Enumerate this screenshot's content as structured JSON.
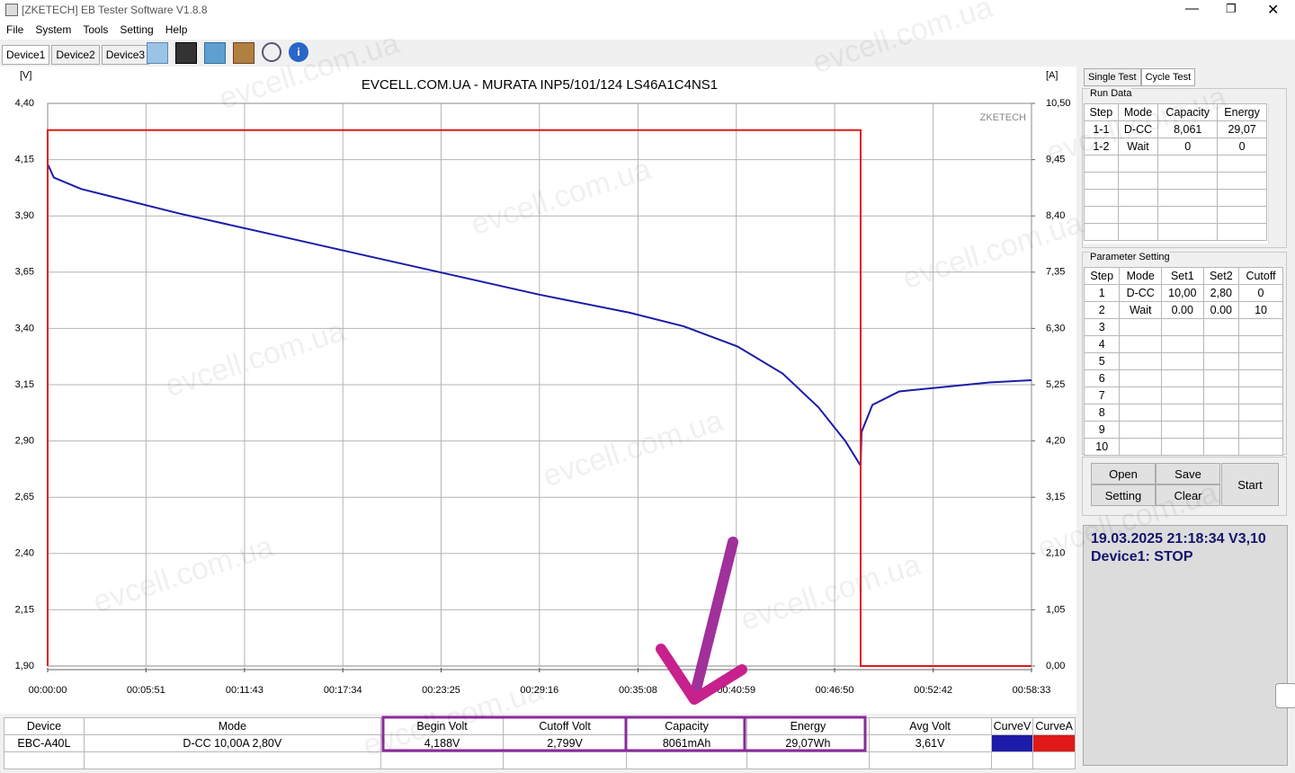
{
  "window": {
    "title": "[ZKETECH] EB Tester Software V1.8.8"
  },
  "menu": [
    "File",
    "System",
    "Tools",
    "Setting",
    "Help"
  ],
  "device_tabs": [
    "Device1",
    "Device2",
    "Device3"
  ],
  "watermark": "evcell.com.ua",
  "chart_data": {
    "type": "line",
    "title": "EVCELL.COM.UA - MURATA INP5/101/124 LS46A1C4NS1",
    "y_unit": "[V]",
    "y2_unit": "[A]",
    "brand": "ZKETECH",
    "grid": true,
    "xlim": [
      0,
      3513
    ],
    "xticks": [
      {
        "value": 0,
        "label": "00:00:00"
      },
      {
        "value": 351,
        "label": "00:05:51"
      },
      {
        "value": 703,
        "label": "00:11:43"
      },
      {
        "value": 1054,
        "label": "00:17:34"
      },
      {
        "value": 1405,
        "label": "00:23:25"
      },
      {
        "value": 1756,
        "label": "00:29:16"
      },
      {
        "value": 2108,
        "label": "00:35:08"
      },
      {
        "value": 2459,
        "label": "00:40:59"
      },
      {
        "value": 2810,
        "label": "00:46:50"
      },
      {
        "value": 3162,
        "label": "00:52:42"
      },
      {
        "value": 3513,
        "label": "00:58:33"
      }
    ],
    "ylim": [
      1.9,
      4.4
    ],
    "yticks": [
      {
        "value": 4.4,
        "label": "4,40"
      },
      {
        "value": 4.15,
        "label": "4,15"
      },
      {
        "value": 3.9,
        "label": "3,90"
      },
      {
        "value": 3.65,
        "label": "3,65"
      },
      {
        "value": 3.4,
        "label": "3,40"
      },
      {
        "value": 3.15,
        "label": "3,15"
      },
      {
        "value": 2.9,
        "label": "2,90"
      },
      {
        "value": 2.65,
        "label": "2,65"
      },
      {
        "value": 2.4,
        "label": "2,40"
      },
      {
        "value": 2.15,
        "label": "2,15"
      },
      {
        "value": 1.9,
        "label": "1,90"
      }
    ],
    "y2lim": [
      0,
      10.5
    ],
    "y2ticks": [
      {
        "value": 10.5,
        "label": "10,50"
      },
      {
        "value": 9.45,
        "label": "9,45"
      },
      {
        "value": 8.4,
        "label": "8,40"
      },
      {
        "value": 7.35,
        "label": "7,35"
      },
      {
        "value": 6.3,
        "label": "6,30"
      },
      {
        "value": 5.25,
        "label": "5,25"
      },
      {
        "value": 4.2,
        "label": "4,20"
      },
      {
        "value": 3.15,
        "label": "3,15"
      },
      {
        "value": 2.1,
        "label": "2,10"
      },
      {
        "value": 1.05,
        "label": "1,05"
      },
      {
        "value": 0,
        "label": "0,00"
      }
    ],
    "series": [
      {
        "name": "CurveV",
        "color": "#1c1ca8",
        "x": [
          0,
          22,
          119,
          472,
          793,
          1114,
          1435,
          1756,
          2078,
          2270,
          2463,
          2624,
          2752,
          2848,
          2903,
          2906,
          2945,
          3041,
          3201,
          3362,
          3513
        ],
        "values": [
          4.13,
          4.07,
          4.02,
          3.91,
          3.82,
          3.73,
          3.64,
          3.55,
          3.47,
          3.41,
          3.32,
          3.2,
          3.05,
          2.9,
          2.79,
          2.94,
          3.06,
          3.12,
          3.14,
          3.16,
          3.17
        ]
      },
      {
        "name": "CurveA",
        "color": "#e01818",
        "axis": "y2",
        "x": [
          0,
          0,
          2903,
          2903,
          3513
        ],
        "values": [
          0,
          10,
          10,
          0,
          0
        ]
      }
    ]
  },
  "right_panel": {
    "tabs": [
      "Single Test",
      "Cycle Test"
    ],
    "run_data": {
      "title": "Run Data",
      "headers": [
        "Step",
        "Mode",
        "Capacity",
        "Energy"
      ],
      "rows": [
        [
          "1-1",
          "D-CC",
          "8,061",
          "29,07"
        ],
        [
          "1-2",
          "Wait",
          "0",
          "0"
        ]
      ]
    },
    "parameter_setting": {
      "title": "Parameter Setting",
      "headers": [
        "Step",
        "Mode",
        "Set1",
        "Set2",
        "Cutoff"
      ],
      "rows": [
        [
          "1",
          "D-CC",
          "10,00",
          "2,80",
          "0"
        ],
        [
          "2",
          "Wait",
          "0.00",
          "0.00",
          "10"
        ],
        [
          "3"
        ],
        [
          "4"
        ],
        [
          "5"
        ],
        [
          "6"
        ],
        [
          "7"
        ],
        [
          "8"
        ],
        [
          "9"
        ],
        [
          "10"
        ]
      ]
    },
    "buttons": {
      "open": "Open",
      "save": "Save",
      "setting": "Setting",
      "clear": "Clear",
      "start": "Start"
    },
    "status": [
      "19.03.2025 21:18:34  V3,10",
      "Device1: STOP"
    ]
  },
  "bottom_table": {
    "headers": [
      "Device",
      "Mode",
      "Begin Volt",
      "Cutoff Volt",
      "Capacity",
      "Energy",
      "Avg Volt"
    ],
    "row": [
      "EBC-A40L",
      "D-CC  10,00A  2,80V",
      "4,188V",
      "2,799V",
      "8061mAh",
      "29,07Wh",
      "3,61V"
    ]
  }
}
